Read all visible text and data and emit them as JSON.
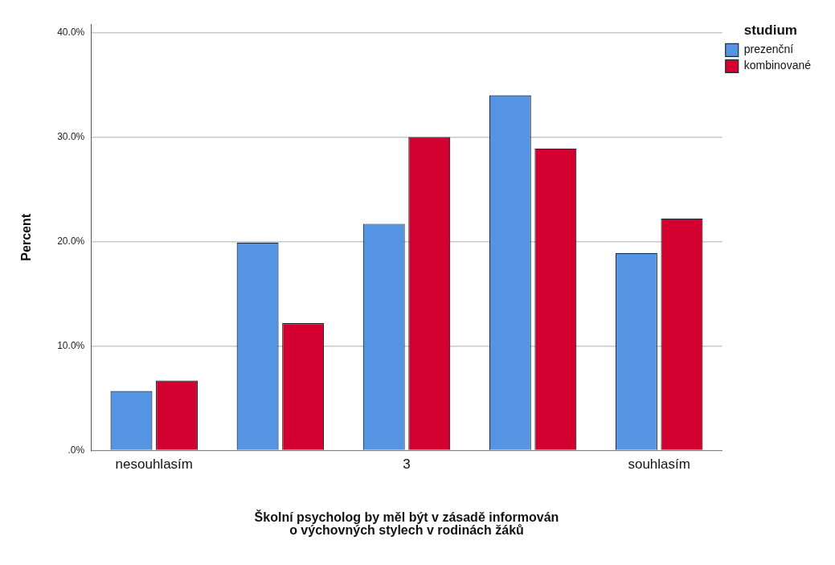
{
  "chart_data": {
    "type": "bar",
    "xlabel": "Školní psycholog by měl být v zásadě informován o výchovných stylech v rodinách žáků",
    "ylabel": "Percent",
    "legend_title": "studium",
    "legend": "top right",
    "grid": "y",
    "categories": [
      "nesouhlasím",
      null,
      "3",
      null,
      "souhlasím"
    ],
    "series": [
      {
        "name": "prezenční",
        "color": "#5593e3",
        "values": [
          5.7,
          19.9,
          21.7,
          34.0,
          18.9
        ]
      },
      {
        "name": "kombinované",
        "color": "#d3002f",
        "values": [
          6.7,
          12.2,
          30.0,
          28.9,
          22.2
        ]
      }
    ],
    "ylim": [
      0,
      40.8
    ],
    "yticks": [
      {
        "value": 0,
        "label": ".0%"
      },
      {
        "value": 10,
        "label": "10.0%"
      },
      {
        "value": 20,
        "label": "20.0%"
      },
      {
        "value": 30,
        "label": "30.0%"
      },
      {
        "value": 40,
        "label": "40.0%"
      }
    ]
  }
}
